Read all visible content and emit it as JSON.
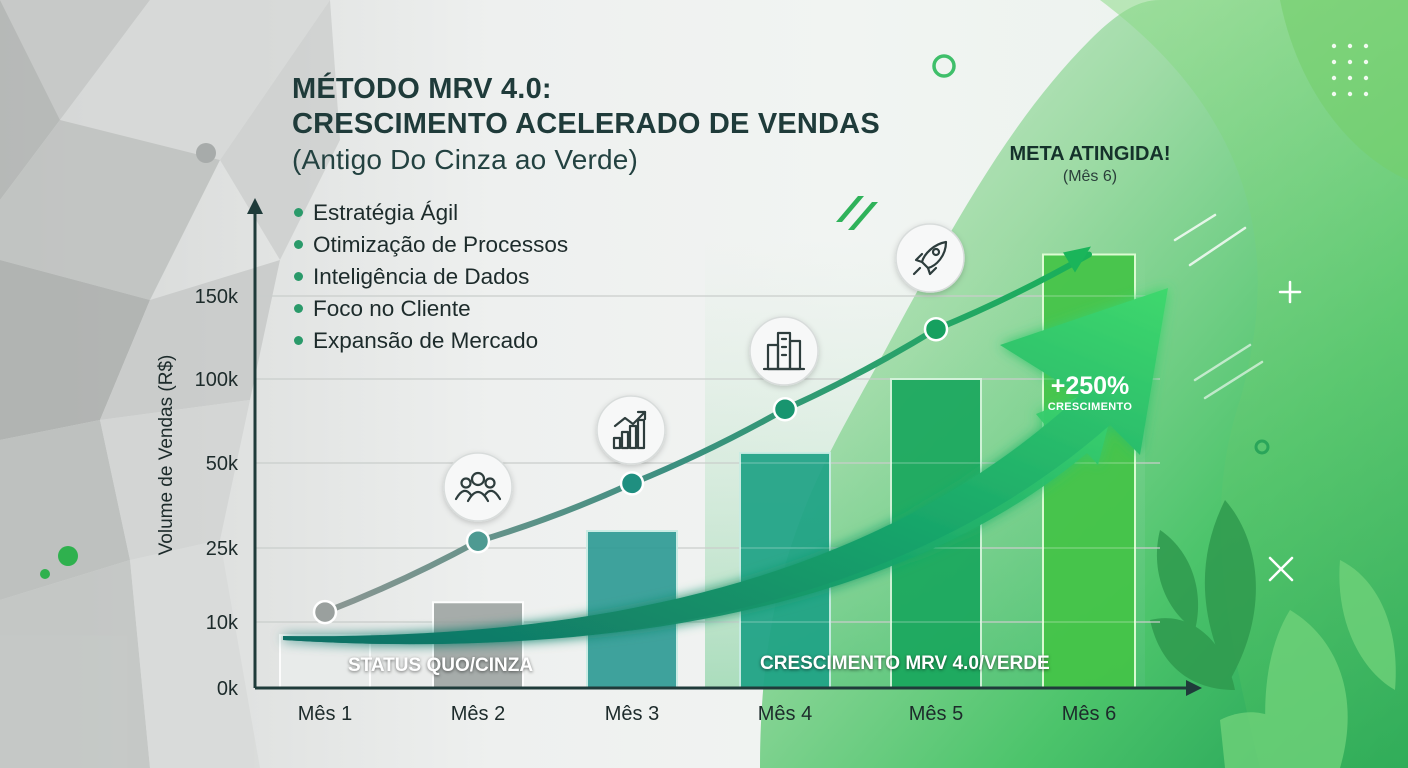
{
  "title": {
    "line1": "MÉTODO MRV 4.0:",
    "line2": "CRESCIMENTO ACELERADO DE VENDAS",
    "line3": "(Antigo Do Cinza ao Verde)"
  },
  "bullets": [
    "Estratégia Ágil",
    "Otimização de Processos",
    "Inteligência de Dados",
    "Foco no Cliente",
    "Expansão de Mercado"
  ],
  "goal": {
    "label": "META ATINGIDA!",
    "sublabel": "(Mês 6)"
  },
  "growth": {
    "value": "+250%",
    "label": "CRESCIMENTO"
  },
  "status": {
    "left": "STATUS QUO/CINZA",
    "right": "CRESCIMENTO MRV 4.0/VERDE"
  },
  "icons": [
    "people-icon",
    "chart-growth-icon",
    "buildings-icon",
    "rocket-icon"
  ],
  "colors": {
    "accent": "#1fa66b",
    "grey": "#9aa09e",
    "dark": "#1f3b3a"
  },
  "chart_data": {
    "type": "bar",
    "ylabel": "Volume de Vendas (R$)",
    "yticks": [
      "0k",
      "10k",
      "25k",
      "50k",
      "100k",
      "150k"
    ],
    "categories": [
      "Mês 1",
      "Mês 2",
      "Mês 3",
      "Mês 4",
      "Mês 5",
      "Mês 6"
    ],
    "values": [
      8,
      14,
      30,
      56,
      100,
      175
    ],
    "line_values": [
      12,
      27,
      44,
      82,
      130,
      175
    ]
  }
}
